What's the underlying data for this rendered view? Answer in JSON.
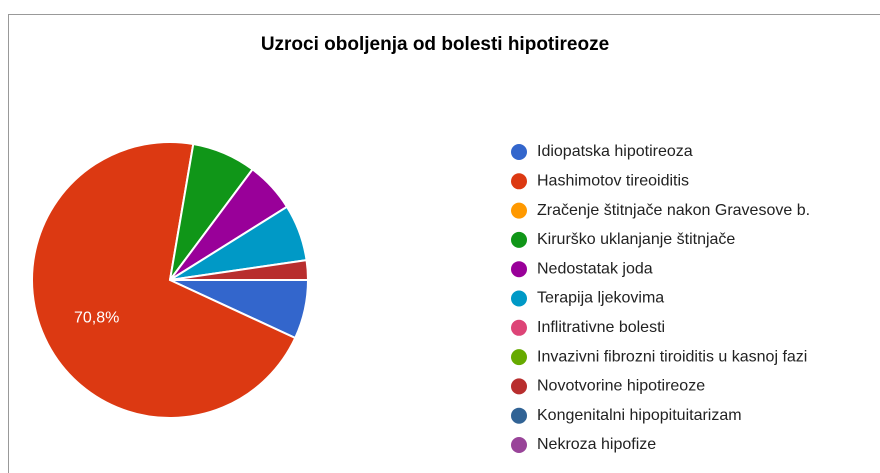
{
  "chart_data": {
    "type": "pie",
    "title": "Uzroci oboljenja od bolesti hipotireoze",
    "categories": [
      "Idiopatska hipotireoza",
      "Hashimotov tireoiditis",
      "Zračenje štitnjače nakon Gravesove b.",
      "Kirurško uklanjanje štitnjače",
      "Nedostatak joda",
      "Terapija ljekovima",
      "Inflitrativne bolesti",
      "Invazivni fibrozni tiroiditis u kasnoj fazi",
      "Novotvorine hipotireoze",
      "Kongenitalni hipopituitarizam",
      "Nekroza hipofize"
    ],
    "values": [
      6.9,
      70.8,
      0,
      7.5,
      5.9,
      6.6,
      0,
      0,
      2.3,
      0,
      0
    ],
    "value_labels": [
      null,
      "70,8%",
      null,
      null,
      null,
      null,
      null,
      null,
      null,
      null,
      null
    ],
    "colors": [
      "#3366cc",
      "#dc3912",
      "#ff9900",
      "#109618",
      "#990099",
      "#0099c6",
      "#dd4477",
      "#66aa00",
      "#b82e2e",
      "#316395",
      "#994499"
    ],
    "legend": "right"
  }
}
